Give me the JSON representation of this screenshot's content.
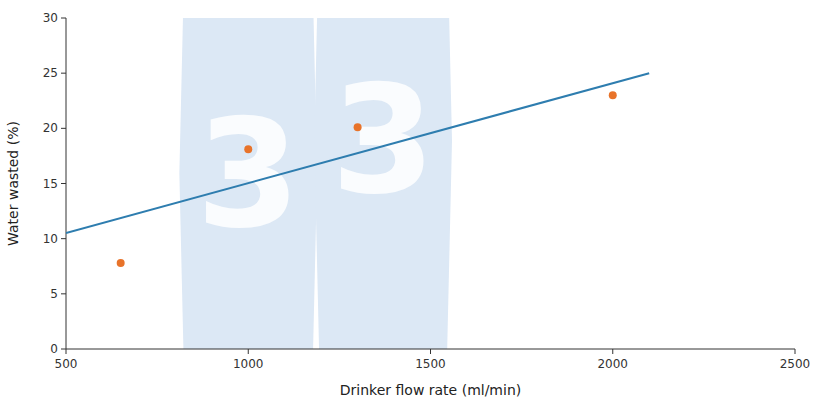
{
  "chart_data": {
    "type": "scatter",
    "x_label": "Drinker flow rate (ml/min)",
    "y_label": "Water wasted (%)",
    "series": [
      {
        "type": "scatter",
        "color": "#E8732A",
        "x": [
          650,
          1000,
          1300,
          2000
        ],
        "values": [
          7.8,
          18.1,
          20.1,
          23.0
        ]
      },
      {
        "type": "line",
        "color": "#2E7DAF",
        "x": [
          500,
          2100
        ],
        "values": [
          10.5,
          25.0
        ]
      }
    ],
    "xlim": [
      500,
      2500
    ],
    "ylim": [
      0,
      30
    ],
    "xticks": [
      500,
      1000,
      1500,
      2000,
      2500
    ],
    "yticks": [
      0,
      5,
      10,
      15,
      20,
      25,
      30
    ],
    "grid": false,
    "annotations": [
      {
        "text": "3",
        "color": "#dce8f5"
      },
      {
        "text": "3",
        "color": "#dce8f5"
      }
    ]
  }
}
